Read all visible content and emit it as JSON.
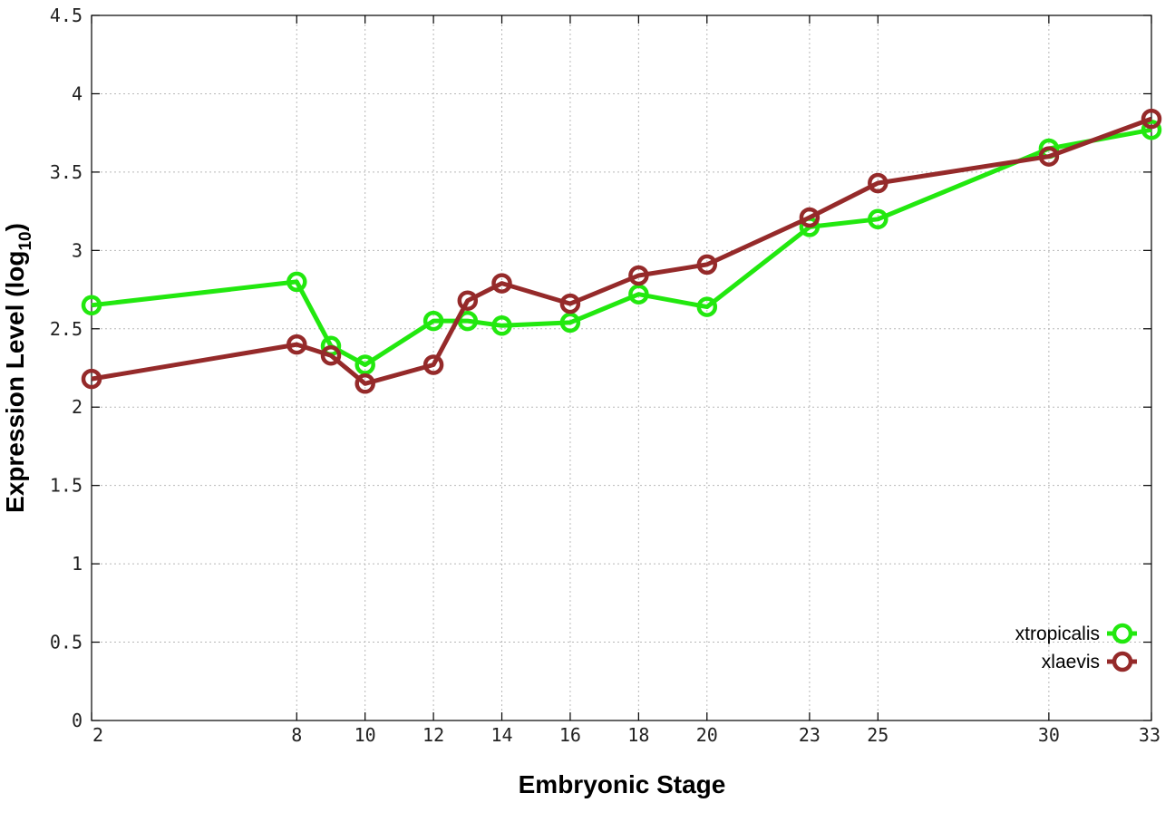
{
  "chart_data": {
    "type": "line",
    "title": "",
    "xlabel": "Embryonic Stage",
    "ylabel_main": "Expression Level (log",
    "ylabel_sub": "10",
    "ylabel_close": ")",
    "x": [
      2,
      8,
      9,
      10,
      12,
      13,
      14,
      16,
      18,
      20,
      23,
      25,
      30,
      33
    ],
    "xticks": [
      "2",
      "8",
      "10",
      "12",
      "14",
      "16",
      "18",
      "20",
      "23",
      "25",
      "30",
      "33"
    ],
    "yticks": [
      "0",
      "0.5",
      "1",
      "1.5",
      "2",
      "2.5",
      "3",
      "3.5",
      "4",
      "4.5"
    ],
    "ylim": [
      0,
      4.5
    ],
    "grid": true,
    "legend_position": "bottom-right",
    "series": [
      {
        "name": "xtropicalis",
        "color": "#22e80f",
        "values": [
          2.65,
          2.8,
          2.39,
          2.27,
          2.55,
          2.55,
          2.52,
          2.54,
          2.72,
          2.64,
          3.15,
          3.2,
          3.65,
          3.77
        ]
      },
      {
        "name": "xlaevis",
        "color": "#952a2a",
        "values": [
          2.18,
          2.4,
          2.33,
          2.15,
          2.27,
          2.68,
          2.79,
          2.66,
          2.84,
          2.91,
          3.21,
          3.43,
          3.6,
          3.84
        ]
      }
    ]
  }
}
